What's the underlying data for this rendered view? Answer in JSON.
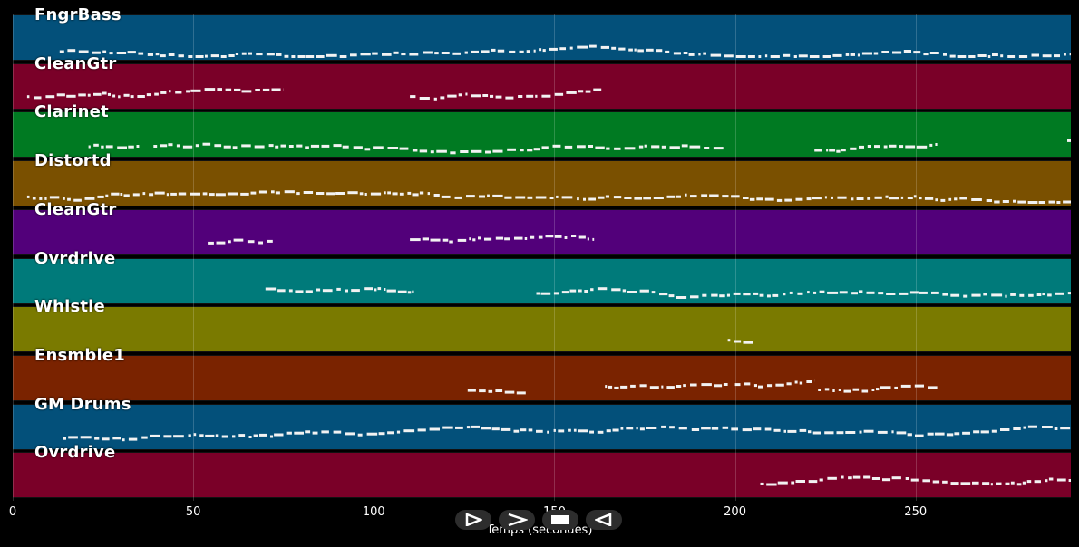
{
  "tracks": [
    {
      "name": "FngrBass",
      "color": "#03507a"
    },
    {
      "name": "CleanGtr",
      "color": "#7a0028"
    },
    {
      "name": "Clarinet",
      "color": "#007a22"
    },
    {
      "name": "Distortd",
      "color": "#7a5000"
    },
    {
      "name": "CleanGtr",
      "color": "#52007a"
    },
    {
      "name": "Ovrdrive",
      "color": "#007a7a"
    },
    {
      "name": "Whistle",
      "color": "#7a7a00"
    },
    {
      "name": "Ensmble1",
      "color": "#7a2300"
    },
    {
      "name": "GM Drums",
      "color": "#03507a"
    },
    {
      "name": "Ovrdrive",
      "color": "#7a0028"
    }
  ],
  "axis": {
    "ticks": [
      "0",
      "50",
      "100",
      "150",
      "200",
      "250"
    ],
    "tick_values": [
      0,
      50,
      100,
      150,
      200,
      250
    ],
    "xlim": [
      0,
      293
    ],
    "xlabel": "Temps (secondes)"
  },
  "controls": {
    "play_icon": "play-outline-icon",
    "next_icon": "chevron-right-icon",
    "stop_icon": "stop-icon",
    "rewind_icon": "rewind-icon"
  },
  "note_ranges": [
    [
      [
        13,
        293
      ]
    ],
    [
      [
        4,
        75
      ],
      [
        110,
        163
      ]
    ],
    [
      [
        21,
        35
      ],
      [
        39,
        197
      ],
      [
        222,
        256
      ],
      [
        292,
        293
      ]
    ],
    [
      [
        4,
        293
      ]
    ],
    [
      [
        54,
        72
      ],
      [
        110,
        161
      ]
    ],
    [
      [
        70,
        112
      ],
      [
        145,
        293
      ]
    ],
    [
      [
        198,
        206
      ]
    ],
    [
      [
        126,
        143
      ],
      [
        164,
        198
      ],
      [
        200,
        222
      ],
      [
        223,
        256
      ]
    ],
    [
      [
        14,
        293
      ]
    ],
    [
      [
        207,
        293
      ]
    ]
  ]
}
